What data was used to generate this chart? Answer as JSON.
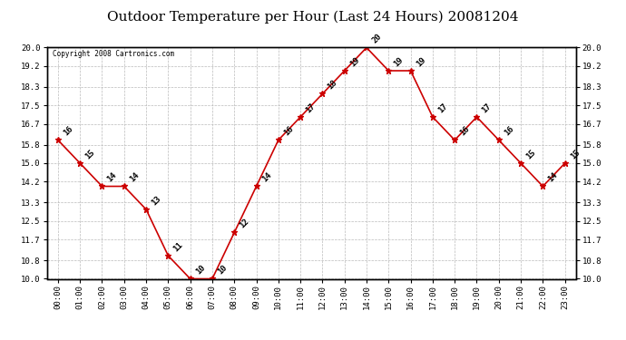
{
  "title": "Outdoor Temperature per Hour (Last 24 Hours) 20081204",
  "copyright_text": "Copyright 2008 Cartronics.com",
  "hours": [
    "00:00",
    "01:00",
    "02:00",
    "03:00",
    "04:00",
    "05:00",
    "06:00",
    "07:00",
    "08:00",
    "09:00",
    "10:00",
    "11:00",
    "12:00",
    "13:00",
    "14:00",
    "15:00",
    "16:00",
    "17:00",
    "18:00",
    "19:00",
    "20:00",
    "21:00",
    "22:00",
    "23:00"
  ],
  "temperatures": [
    16,
    15,
    14,
    14,
    13,
    11,
    10,
    10,
    12,
    14,
    16,
    17,
    18,
    19,
    20,
    19,
    19,
    17,
    16,
    17,
    16,
    15,
    14,
    15
  ],
  "ylim": [
    10.0,
    20.0
  ],
  "yticks": [
    10.0,
    10.8,
    11.7,
    12.5,
    13.3,
    14.2,
    15.0,
    15.8,
    16.7,
    17.5,
    18.3,
    19.2,
    20.0
  ],
  "line_color": "#cc0000",
  "marker_color": "#cc0000",
  "bg_color": "#ffffff",
  "plot_bg_color": "#ffffff",
  "grid_color": "#bbbbbb",
  "title_fontsize": 11,
  "label_fontsize": 6.5,
  "annotation_fontsize": 6.5
}
